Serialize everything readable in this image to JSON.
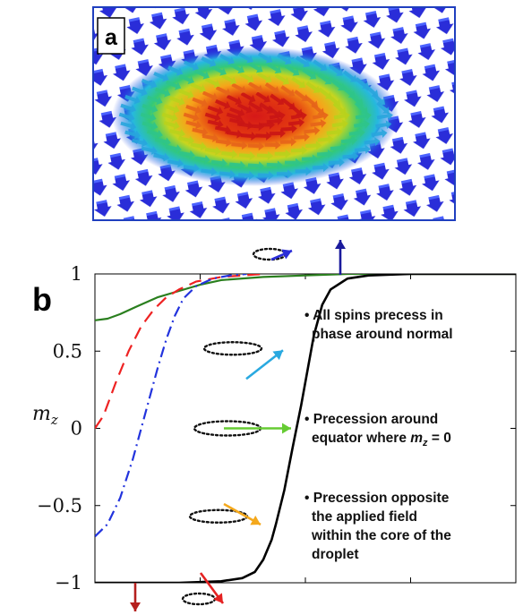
{
  "panel_a": {
    "label": "a"
  },
  "panel_b": {
    "label": "b",
    "annotations": [
      {
        "lines": [
          "• All spins precess in",
          "phase around normal"
        ]
      },
      {
        "lines": [
          "• Precession around",
          "equator where m_z = 0"
        ]
      },
      {
        "lines": [
          "• Precession opposite",
          "the applied field",
          "within the core of the",
          "droplet"
        ]
      }
    ]
  },
  "colors": {
    "frame_blue": "#1f3fbf",
    "arrow_blue": "#2a2dd8",
    "solid_green": "#2a7f1e",
    "dash_red": "#ee2222",
    "dashdot_blue": "#2233dd",
    "profile_black": "#000000",
    "arrow_cyan": "#29a9e0",
    "arrow_green": "#66cc33",
    "arrow_orange": "#f4a81c",
    "arrow_red": "#e52222",
    "arrow_darkred": "#b5201e",
    "arrow_navy": "#1a1a9c"
  },
  "chart_data": {
    "type": "line",
    "title": "",
    "xlabel": "",
    "ylabel": "m_z",
    "xlim": [
      0,
      1
    ],
    "ylim": [
      -1,
      1
    ],
    "yticks": [
      1,
      0.5,
      0,
      -0.5,
      -1
    ],
    "ytick_labels": [
      "1",
      "0.5",
      "0",
      "−0.5",
      "−1"
    ],
    "grid": false,
    "series": [
      {
        "style": "solid",
        "color": "#2a7f1e",
        "x": [
          0,
          0.03,
          0.06,
          0.1,
          0.15,
          0.2,
          0.25,
          0.3,
          0.4,
          0.5,
          0.6,
          0.8,
          1.0
        ],
        "y": [
          0.7,
          0.71,
          0.74,
          0.79,
          0.85,
          0.89,
          0.93,
          0.96,
          0.98,
          0.99,
          1.0,
          1.0,
          1.0
        ]
      },
      {
        "style": "dashed",
        "color": "#ee2222",
        "x": [
          0,
          0.02,
          0.05,
          0.08,
          0.11,
          0.14,
          0.17,
          0.2,
          0.24,
          0.3,
          0.35,
          0.4
        ],
        "y": [
          0.0,
          0.08,
          0.3,
          0.5,
          0.66,
          0.77,
          0.85,
          0.9,
          0.95,
          0.98,
          0.99,
          1.0
        ]
      },
      {
        "style": "dashdot",
        "color": "#2233dd",
        "x": [
          0,
          0.03,
          0.06,
          0.09,
          0.11,
          0.13,
          0.15,
          0.17,
          0.19,
          0.21,
          0.24,
          0.28,
          0.32,
          0.36
        ],
        "y": [
          -0.7,
          -0.62,
          -0.45,
          -0.2,
          0.0,
          0.2,
          0.4,
          0.58,
          0.73,
          0.84,
          0.92,
          0.97,
          0.99,
          1.0
        ]
      },
      {
        "style": "solid",
        "color": "#000000",
        "x": [
          0,
          0.2,
          0.3,
          0.35,
          0.38,
          0.4,
          0.42,
          0.43,
          0.45,
          0.47,
          0.49,
          0.51,
          0.52,
          0.54,
          0.56,
          0.6,
          0.65,
          0.75,
          1.0
        ],
        "y": [
          -1.0,
          -1.0,
          -0.99,
          -0.97,
          -0.93,
          -0.85,
          -0.72,
          -0.62,
          -0.4,
          -0.12,
          0.15,
          0.45,
          0.6,
          0.8,
          0.9,
          0.97,
          0.99,
          1.0,
          1.0
        ]
      }
    ],
    "annotation_arrows": [
      {
        "color": "#1a1a9c",
        "place": "top, above plot"
      },
      {
        "color": "#29a9e0",
        "place": "m_z = 0.5"
      },
      {
        "color": "#66cc33",
        "place": "m_z = 0"
      },
      {
        "color": "#f4a81c",
        "place": "m_z = -0.5"
      },
      {
        "color": "#e52222",
        "place": "bottom"
      },
      {
        "color": "#b5201e",
        "place": "bottom, below plot"
      }
    ]
  }
}
